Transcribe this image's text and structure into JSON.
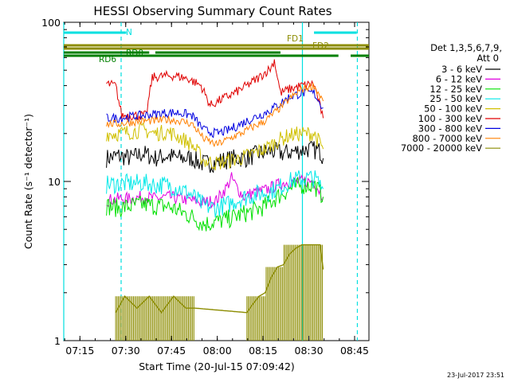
{
  "chart_data": {
    "type": "line",
    "title": "HESSI Observing Summary Count Rates",
    "xlabel": "Start Time (20-Jul-15 07:09:42)",
    "ylabel": "Count Rate (s⁻¹ detector⁻¹)",
    "y_scale": "log",
    "ylim": [
      1,
      100
    ],
    "xlim_minutes": [
      0,
      100
    ],
    "x_ticks": [
      {
        "label": "07:15",
        "minute": 5.3
      },
      {
        "label": "07:30",
        "minute": 20.3
      },
      {
        "label": "07:45",
        "minute": 35.3
      },
      {
        "label": "08:00",
        "minute": 50.3
      },
      {
        "label": "08:15",
        "minute": 65.3
      },
      {
        "label": "08:30",
        "minute": 80.3
      },
      {
        "label": "08:45",
        "minute": 95.3
      }
    ],
    "y_ticks": [
      {
        "label": "1",
        "value": 1
      },
      {
        "label": "10",
        "value": 10
      },
      {
        "label": "100",
        "value": 100
      }
    ],
    "legend_header": [
      "Det 1,3,5,6,7,9,",
      "Att 0"
    ],
    "series": [
      {
        "name": "3 - 6 keV",
        "color": "#000000",
        "points": [
          [
            14,
            14
          ],
          [
            18,
            14.5
          ],
          [
            22,
            14
          ],
          [
            26,
            15
          ],
          [
            30,
            14
          ],
          [
            34,
            14.5
          ],
          [
            38,
            14
          ],
          [
            42,
            14
          ],
          [
            45,
            13
          ],
          [
            48,
            13
          ],
          [
            52,
            13.5
          ],
          [
            56,
            14
          ],
          [
            60,
            14
          ],
          [
            64,
            15
          ],
          [
            68,
            15.5
          ],
          [
            72,
            15
          ],
          [
            76,
            15.5
          ],
          [
            80,
            16
          ],
          [
            84,
            15.5
          ],
          [
            85,
            14
          ]
        ]
      },
      {
        "name": "6 - 12 keV",
        "color": "#e000e0",
        "points": [
          [
            14,
            7.6
          ],
          [
            18,
            7.8
          ],
          [
            22,
            7.8
          ],
          [
            26,
            8
          ],
          [
            30,
            7.8
          ],
          [
            34,
            8
          ],
          [
            38,
            7.8
          ],
          [
            42,
            7.6
          ],
          [
            46,
            7.4
          ],
          [
            50,
            7.6
          ],
          [
            53,
            9
          ],
          [
            55,
            10.5
          ],
          [
            57,
            9
          ],
          [
            59,
            8
          ],
          [
            62,
            8.5
          ],
          [
            66,
            8.8
          ],
          [
            70,
            9.5
          ],
          [
            74,
            10
          ],
          [
            78,
            10
          ],
          [
            82,
            10
          ],
          [
            85,
            8
          ]
        ]
      },
      {
        "name": "12 - 25 keV",
        "color": "#00e000",
        "points": [
          [
            14,
            7
          ],
          [
            18,
            6.8
          ],
          [
            22,
            7
          ],
          [
            26,
            7.2
          ],
          [
            30,
            7
          ],
          [
            34,
            7
          ],
          [
            38,
            6.5
          ],
          [
            42,
            6
          ],
          [
            46,
            5.4
          ],
          [
            50,
            5.6
          ],
          [
            54,
            5.8
          ],
          [
            58,
            6.2
          ],
          [
            62,
            6.5
          ],
          [
            66,
            7
          ],
          [
            70,
            8
          ],
          [
            74,
            9
          ],
          [
            78,
            9.5
          ],
          [
            82,
            9.5
          ],
          [
            85,
            8
          ]
        ]
      },
      {
        "name": "25 - 50 keV",
        "color": "#00e8e8",
        "points": [
          [
            14,
            9.5
          ],
          [
            18,
            9.7
          ],
          [
            22,
            9.7
          ],
          [
            26,
            9.8
          ],
          [
            30,
            9.5
          ],
          [
            34,
            9.5
          ],
          [
            38,
            9
          ],
          [
            42,
            8.2
          ],
          [
            46,
            7
          ],
          [
            50,
            6.8
          ],
          [
            54,
            7.2
          ],
          [
            58,
            7.8
          ],
          [
            62,
            8.2
          ],
          [
            66,
            8.5
          ],
          [
            70,
            9
          ],
          [
            74,
            10
          ],
          [
            78,
            10.5
          ],
          [
            82,
            10.5
          ],
          [
            85,
            9
          ]
        ]
      },
      {
        "name": "50 - 100 keV",
        "color": "#d0c000",
        "points": [
          [
            14,
            20
          ],
          [
            18,
            20
          ],
          [
            22,
            20.5
          ],
          [
            26,
            21
          ],
          [
            30,
            20
          ],
          [
            34,
            20.5
          ],
          [
            38,
            19
          ],
          [
            42,
            17
          ],
          [
            46,
            13.5
          ],
          [
            50,
            13
          ],
          [
            54,
            13.5
          ],
          [
            58,
            14
          ],
          [
            62,
            15
          ],
          [
            66,
            16
          ],
          [
            70,
            18
          ],
          [
            74,
            19.5
          ],
          [
            78,
            20
          ],
          [
            82,
            20
          ],
          [
            85,
            16
          ]
        ]
      },
      {
        "name": "100 - 300 keV",
        "color": "#e00000",
        "points": [
          [
            14,
            41
          ],
          [
            17,
            40
          ],
          [
            19,
            26
          ],
          [
            22,
            26
          ],
          [
            25,
            26
          ],
          [
            27,
            26
          ],
          [
            29,
            45
          ],
          [
            33,
            46
          ],
          [
            37,
            46
          ],
          [
            41,
            44
          ],
          [
            45,
            40
          ],
          [
            48,
            30
          ],
          [
            52,
            33
          ],
          [
            56,
            36
          ],
          [
            60,
            40
          ],
          [
            64,
            45
          ],
          [
            68,
            52
          ],
          [
            69,
            58
          ],
          [
            71,
            36
          ],
          [
            74,
            38
          ],
          [
            78,
            40
          ],
          [
            82,
            41
          ],
          [
            85,
            25
          ]
        ]
      },
      {
        "name": "300 - 800 keV",
        "color": "#0000e0",
        "points": [
          [
            14,
            25
          ],
          [
            18,
            25
          ],
          [
            22,
            25.5
          ],
          [
            26,
            26
          ],
          [
            30,
            26.5
          ],
          [
            34,
            27
          ],
          [
            38,
            27
          ],
          [
            42,
            26
          ],
          [
            46,
            21
          ],
          [
            50,
            20
          ],
          [
            54,
            21
          ],
          [
            58,
            23
          ],
          [
            62,
            25
          ],
          [
            66,
            27
          ],
          [
            70,
            30
          ],
          [
            74,
            34
          ],
          [
            78,
            36
          ],
          [
            82,
            36
          ],
          [
            85,
            29
          ]
        ]
      },
      {
        "name": "800 - 7000 keV",
        "color": "#ff8000",
        "points": [
          [
            14,
            23
          ],
          [
            18,
            23
          ],
          [
            22,
            23.5
          ],
          [
            26,
            24
          ],
          [
            30,
            24
          ],
          [
            34,
            24.5
          ],
          [
            38,
            24
          ],
          [
            42,
            23
          ],
          [
            46,
            18.5
          ],
          [
            50,
            17
          ],
          [
            54,
            18.5
          ],
          [
            58,
            20
          ],
          [
            62,
            22
          ],
          [
            66,
            24
          ],
          [
            70,
            28
          ],
          [
            74,
            33
          ],
          [
            78,
            38
          ],
          [
            82,
            40
          ],
          [
            85,
            32
          ]
        ]
      },
      {
        "name": "7000 - 20000 keV",
        "color": "#8c8c00",
        "points": [
          [
            17,
            1.5
          ],
          [
            20,
            1.9
          ],
          [
            24,
            1.6
          ],
          [
            28,
            1.9
          ],
          [
            32,
            1.5
          ],
          [
            36,
            1.9
          ],
          [
            40,
            1.6
          ],
          [
            43,
            1.6
          ],
          [
            60,
            1.5
          ],
          [
            62,
            1.7
          ],
          [
            64,
            1.9
          ],
          [
            66,
            2
          ],
          [
            68,
            2.5
          ],
          [
            70,
            2.9
          ],
          [
            72,
            3
          ],
          [
            74,
            3.5
          ],
          [
            76,
            3.8
          ],
          [
            78,
            4
          ],
          [
            80,
            4
          ],
          [
            82,
            4
          ],
          [
            84,
            4
          ],
          [
            85,
            2.8
          ]
        ]
      }
    ],
    "segment_bars": [
      {
        "label": "N",
        "color": "#00e0e0",
        "level": 1,
        "spans": [
          [
            0,
            20.5
          ],
          [
            82,
            96
          ]
        ]
      },
      {
        "label": "FD1",
        "color": "#8c8c00",
        "level": 2,
        "spans": [
          [
            0,
            100
          ]
        ]
      },
      {
        "label": "FD2",
        "color": "#8c8c00",
        "level": 3,
        "spans": [
          [
            0,
            100
          ]
        ]
      },
      {
        "label": "RD0",
        "color": "#008000",
        "level": 4,
        "spans": [
          [
            0,
            28
          ],
          [
            30,
            71
          ]
        ]
      },
      {
        "label": "RD6",
        "color": "#008000",
        "level": 5,
        "spans": [
          [
            0,
            71
          ],
          [
            71,
            90
          ],
          [
            94,
            100
          ]
        ]
      }
    ],
    "vertical_markers": [
      {
        "minute": 0,
        "color": "#00e0e0",
        "style": "solid"
      },
      {
        "minute": 18.8,
        "color": "#00e0e0",
        "style": "dashed"
      },
      {
        "minute": 78.2,
        "color": "#00e0e0",
        "style": "solid"
      },
      {
        "minute": 96.2,
        "color": "#00e0e0",
        "style": "dashed"
      }
    ],
    "grid": false
  },
  "footer": {
    "date_stamp": "23-Jul-2017 23:51"
  }
}
